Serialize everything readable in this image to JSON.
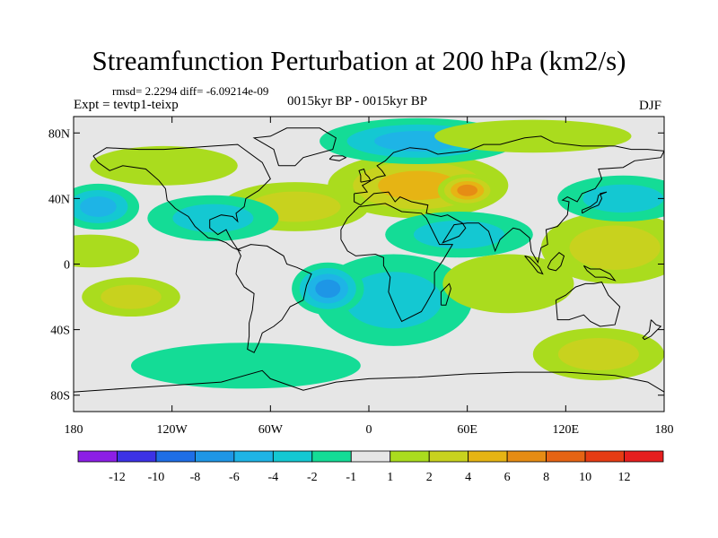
{
  "chart_data": {
    "type": "heatmap",
    "title": "Streamfunction Perturbation at 200 hPa (km2/s)",
    "stats": "rmsd= 2.2294 diff= -6.09214e-09",
    "experiment": "Expt = tevtp1-teixp",
    "period": "0015kyr BP - 0015kyr BP",
    "season": "DJF",
    "x_ticks": [
      "180",
      "120W",
      "60W",
      "0",
      "60E",
      "120E",
      "180"
    ],
    "x_tick_values": [
      -180,
      -120,
      -60,
      0,
      60,
      120,
      180
    ],
    "y_ticks": [
      "80N",
      "40N",
      "0",
      "40S",
      "80S"
    ],
    "y_tick_values": [
      80,
      40,
      0,
      -40,
      -80
    ],
    "xlim": [
      -180,
      180
    ],
    "ylim": [
      -90,
      90
    ],
    "colorbar_labels": [
      "-12",
      "-10",
      "-8",
      "-6",
      "-4",
      "-2",
      "-1",
      "1",
      "2",
      "4",
      "6",
      "8",
      "10",
      "12"
    ],
    "colorbar_colors": [
      "#8c1ee6",
      "#3c32e6",
      "#1e6ee6",
      "#1e96e6",
      "#1eb4e6",
      "#14c8d2",
      "#14dc96",
      "#e6e6e6",
      "#aadc1e",
      "#c8d21e",
      "#e6b414",
      "#e68c14",
      "#e66414",
      "#e63c14",
      "#e61e1e"
    ],
    "blobs": [
      {
        "lon": 15,
        "lat": -22,
        "a": 48,
        "b": 28,
        "value": -4.5
      },
      {
        "lon": -25,
        "lat": -15,
        "a": 22,
        "b": 16,
        "value": -7
      },
      {
        "lon": 30,
        "lat": 48,
        "a": 55,
        "b": 20,
        "value": 6
      },
      {
        "lon": 60,
        "lat": 45,
        "a": 18,
        "b": 10,
        "value": 8
      },
      {
        "lon": 30,
        "lat": 75,
        "a": 60,
        "b": 14,
        "value": -5
      },
      {
        "lon": 55,
        "lat": 18,
        "a": 45,
        "b": 14,
        "value": -4
      },
      {
        "lon": -45,
        "lat": 35,
        "a": 45,
        "b": 15,
        "value": 4
      },
      {
        "lon": -95,
        "lat": 28,
        "a": 40,
        "b": 14,
        "value": -3
      },
      {
        "lon": -125,
        "lat": 60,
        "a": 45,
        "b": 12,
        "value": 2
      },
      {
        "lon": -165,
        "lat": 35,
        "a": 25,
        "b": 14,
        "value": -5
      },
      {
        "lon": -170,
        "lat": 8,
        "a": 30,
        "b": 10,
        "value": 2
      },
      {
        "lon": -145,
        "lat": -20,
        "a": 30,
        "b": 12,
        "value": 3
      },
      {
        "lon": 150,
        "lat": 10,
        "a": 45,
        "b": 22,
        "value": 4
      },
      {
        "lon": 155,
        "lat": 40,
        "a": 40,
        "b": 14,
        "value": -3
      },
      {
        "lon": 85,
        "lat": -12,
        "a": 40,
        "b": 18,
        "value": 2
      },
      {
        "lon": 140,
        "lat": -55,
        "a": 40,
        "b": 16,
        "value": 4
      },
      {
        "lon": -75,
        "lat": -62,
        "a": 70,
        "b": 14,
        "value": -2
      },
      {
        "lon": 100,
        "lat": 78,
        "a": 60,
        "b": 10,
        "value": 2
      }
    ]
  }
}
